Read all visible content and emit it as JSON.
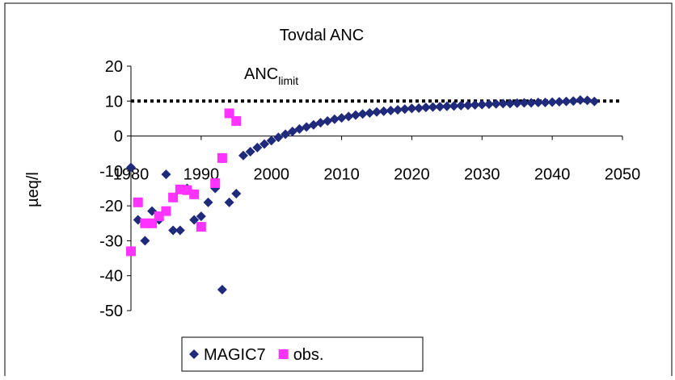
{
  "chart_data": {
    "type": "scatter",
    "title": "Tovdal ANC",
    "y_label": "µeq/l",
    "annotation": {
      "text": "ANC",
      "subscript": "limit"
    },
    "anc_limit": 10,
    "xlim": [
      1980,
      2050
    ],
    "xticks": [
      1980,
      1990,
      2000,
      2010,
      2020,
      2030,
      2040,
      2050
    ],
    "ylim": [
      -50,
      20
    ],
    "yticks": [
      -50,
      -40,
      -30,
      -20,
      -10,
      0,
      10,
      20
    ],
    "series": [
      {
        "name": "MAGIC7",
        "color": "#1f2a7a",
        "marker": "diamond",
        "x": [
          1980,
          1981,
          1982,
          1983,
          1984,
          1985,
          1986,
          1987,
          1988,
          1989,
          1990,
          1991,
          1992,
          1993,
          1994,
          1995,
          1996,
          1997,
          1998,
          1999,
          2000,
          2001,
          2002,
          2003,
          2004,
          2005,
          2006,
          2007,
          2008,
          2009,
          2010,
          2011,
          2012,
          2013,
          2014,
          2015,
          2016,
          2017,
          2018,
          2019,
          2020,
          2021,
          2022,
          2023,
          2024,
          2025,
          2026,
          2027,
          2028,
          2029,
          2030,
          2031,
          2032,
          2033,
          2034,
          2035,
          2036,
          2037,
          2038,
          2039,
          2040,
          2041,
          2042,
          2043,
          2044,
          2045,
          2046
        ],
        "values": [
          -9,
          -24,
          -30,
          -21.5,
          -24,
          -11,
          -27,
          -27,
          -15,
          -24,
          -23,
          -19,
          -15,
          -44,
          -19,
          -16.5,
          -5.6,
          -4.5,
          -3.3,
          -2.3,
          -1.3,
          -0.4,
          0.5,
          1.3,
          2,
          2.6,
          3.2,
          3.8,
          4.3,
          4.8,
          5.2,
          5.6,
          6,
          6.3,
          6.6,
          6.9,
          7.1,
          7.3,
          7.5,
          7.7,
          7.9,
          8,
          8.2,
          8.3,
          8.4,
          8.5,
          8.6,
          8.7,
          8.8,
          8.9,
          9,
          9.1,
          9.2,
          9.3,
          9.3,
          9.4,
          9.5,
          9.5,
          9.6,
          9.6,
          9.7,
          9.8,
          9.9,
          10,
          10.3,
          10.2,
          9.9
        ]
      },
      {
        "name": "obs.",
        "color": "#ff33ff",
        "marker": "square",
        "x": [
          1980,
          1981,
          1982,
          1983,
          1984,
          1985,
          1986,
          1987,
          1988,
          1989,
          1990,
          1992,
          1993,
          1994,
          1995
        ],
        "values": [
          -33,
          -19,
          -25,
          -25,
          -23,
          -21.5,
          -17.6,
          -15.3,
          -15.5,
          -16.7,
          -26,
          -13.5,
          -6.3,
          6.5,
          4.3
        ]
      }
    ]
  }
}
